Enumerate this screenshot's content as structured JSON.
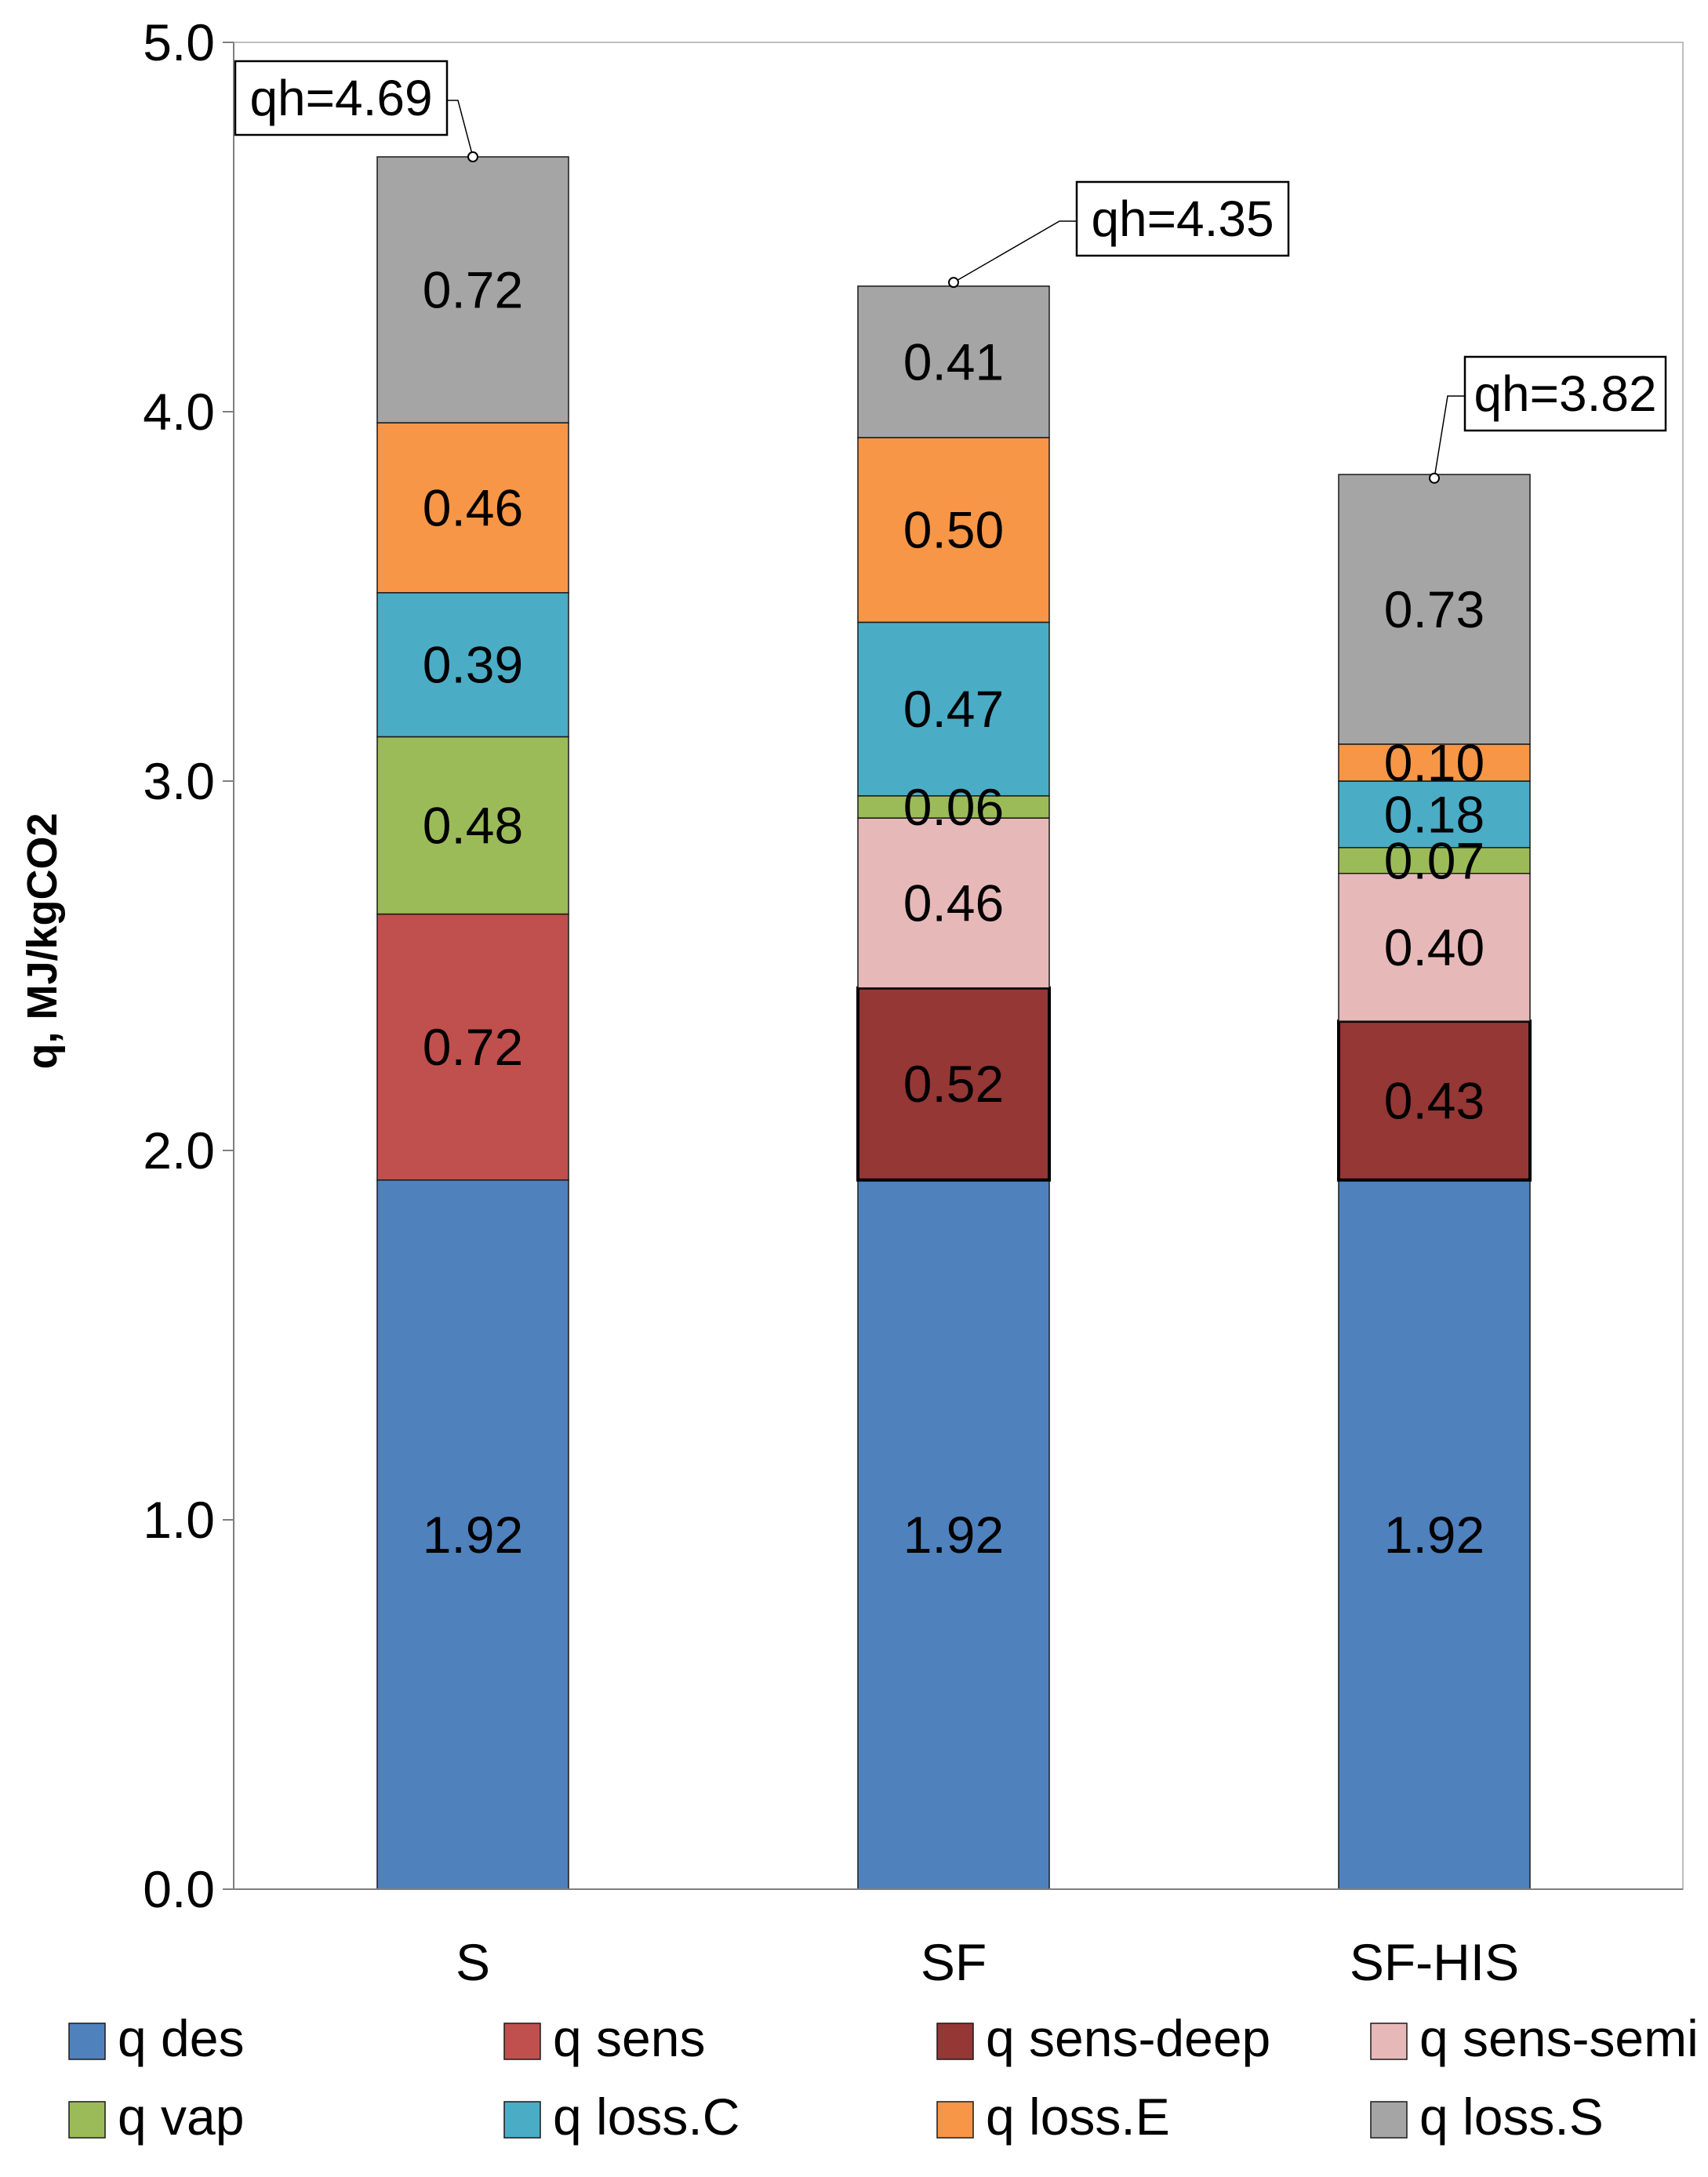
{
  "chart_data": {
    "type": "bar",
    "stacked": true,
    "title": "",
    "xlabel": "",
    "ylabel": "q, MJ/kgCO2",
    "ylim": [
      0,
      5
    ],
    "yticks": [
      "0.0",
      "1.0",
      "2.0",
      "3.0",
      "4.0",
      "5.0"
    ],
    "grid": false,
    "legend_position": "bottom",
    "categories": [
      "S",
      "SF",
      "SF-HIS"
    ],
    "series": [
      {
        "name": "q des",
        "color": "#4f81bd",
        "values": [
          1.92,
          1.92,
          1.92
        ],
        "labels": [
          "1.92",
          "1.92",
          "1.92"
        ]
      },
      {
        "name": "q sens",
        "color": "#c0504d",
        "values": [
          0.72,
          0,
          0
        ],
        "labels": [
          "0.72",
          "",
          ""
        ]
      },
      {
        "name": "q sens-deep",
        "color": "#953735",
        "values": [
          0,
          0.52,
          0.43
        ],
        "labels": [
          "",
          "0.52",
          "0.43"
        ]
      },
      {
        "name": "q sens-semi",
        "color": "#e6b9b8",
        "values": [
          0,
          0.46,
          0.4
        ],
        "labels": [
          "",
          "0.46",
          "0.40"
        ]
      },
      {
        "name": "q vap",
        "color": "#9bbb59",
        "values": [
          0.48,
          0.06,
          0.07
        ],
        "labels": [
          "0.48",
          "0.06",
          "0.07"
        ]
      },
      {
        "name": "q loss.C",
        "color": "#4bacc6",
        "values": [
          0.39,
          0.47,
          0.18
        ],
        "labels": [
          "0.39",
          "0.47",
          "0.18"
        ]
      },
      {
        "name": "q loss.E",
        "color": "#f79646",
        "values": [
          0.46,
          0.5,
          0.1
        ],
        "labels": [
          "0.46",
          "0.50",
          "0.10"
        ]
      },
      {
        "name": "q loss.S",
        "color": "#a5a5a5",
        "values": [
          0.72,
          0.41,
          0.73
        ],
        "labels": [
          "0.72",
          "0.41",
          "0.73"
        ]
      }
    ],
    "annotations": [
      {
        "category": "S",
        "text": "qh=4.69",
        "value": 4.69
      },
      {
        "category": "SF",
        "text": "qh=4.35",
        "value": 4.35
      },
      {
        "category": "SF-HIS",
        "text": "qh=3.82",
        "value": 3.82
      }
    ]
  }
}
